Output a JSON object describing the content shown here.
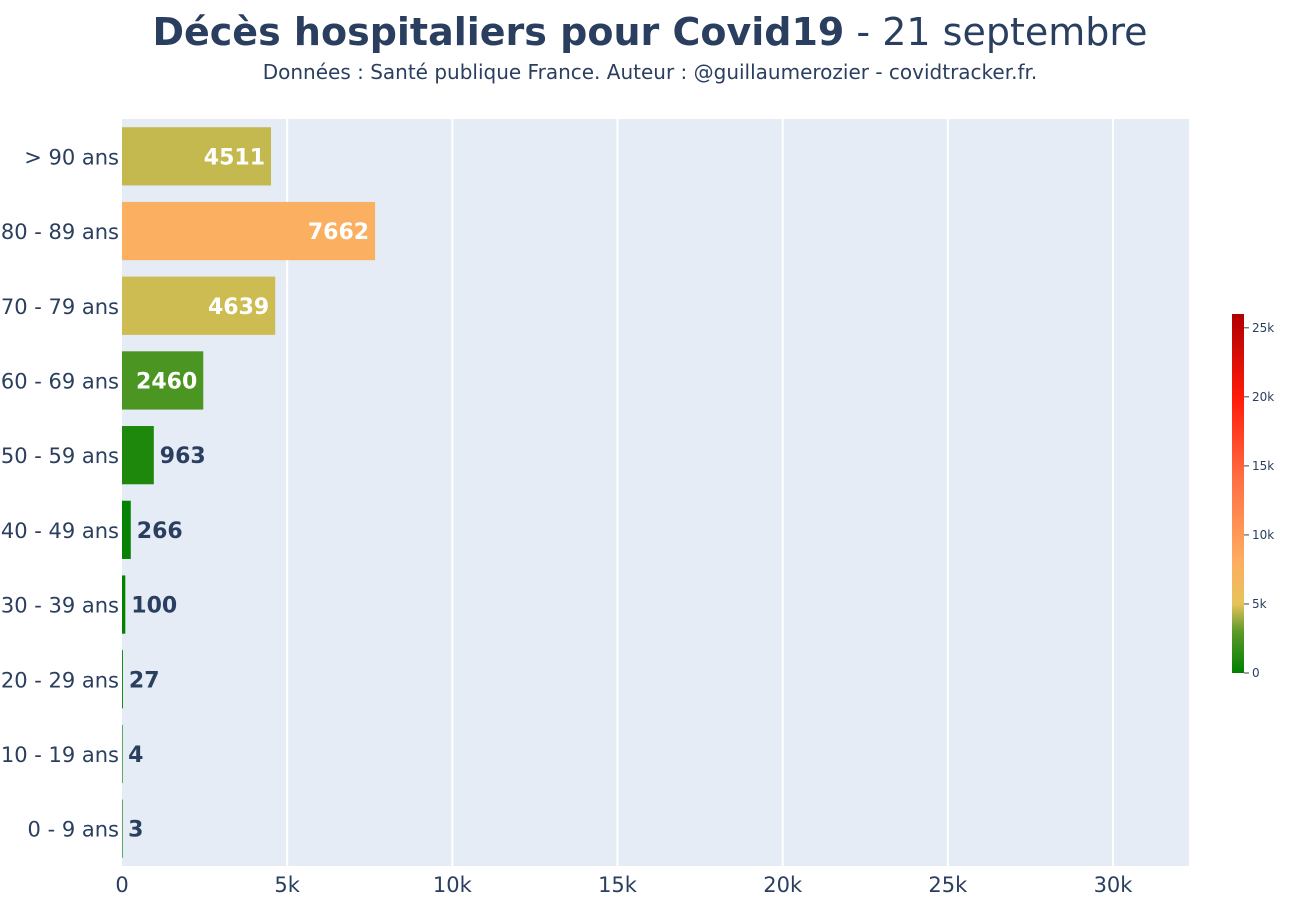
{
  "header": {
    "title_bold": "Décès hospitaliers pour Covid19",
    "title_rest": " - 21 septembre",
    "subtitle": "Données : Santé publique France. Auteur : @guillaumerozier - covidtracker.fr."
  },
  "chart_data": {
    "type": "bar",
    "orientation": "horizontal",
    "categories": [
      "> 90 ans",
      "80 - 89 ans",
      "70 - 79 ans",
      "60 - 69 ans",
      "50 - 59 ans",
      "40 - 49 ans",
      "30 - 39 ans",
      "20 - 29 ans",
      "10 - 19 ans",
      "0 - 9 ans"
    ],
    "values": [
      4511,
      7662,
      4639,
      2460,
      963,
      266,
      100,
      27,
      4,
      3
    ],
    "xlim": [
      0,
      32300
    ],
    "x_ticks": [
      0,
      5000,
      10000,
      15000,
      20000,
      25000,
      30000
    ],
    "x_tick_labels": [
      "0",
      "5k",
      "10k",
      "15k",
      "20k",
      "25k",
      "30k"
    ],
    "grid": true,
    "colorscale": {
      "range": [
        0,
        26000
      ],
      "stops": [
        [
          0,
          "#008000"
        ],
        [
          3000,
          "#5c9a2a"
        ],
        [
          5000,
          "#e6c35a"
        ],
        [
          8000,
          "#fdae61"
        ],
        [
          14000,
          "#ff7043"
        ],
        [
          20000,
          "#ff1a0a"
        ],
        [
          26000,
          "#b00000"
        ]
      ],
      "ticks": [
        0,
        5000,
        10000,
        15000,
        20000,
        25000
      ],
      "tick_labels": [
        "0",
        "5k",
        "10k",
        "15k",
        "20k",
        "25k"
      ]
    },
    "colors": {
      "plot_bg": "#e5ecf6",
      "grid": "#ffffff",
      "text": "#2a3f5f",
      "label_inside": "#ffffff"
    }
  }
}
